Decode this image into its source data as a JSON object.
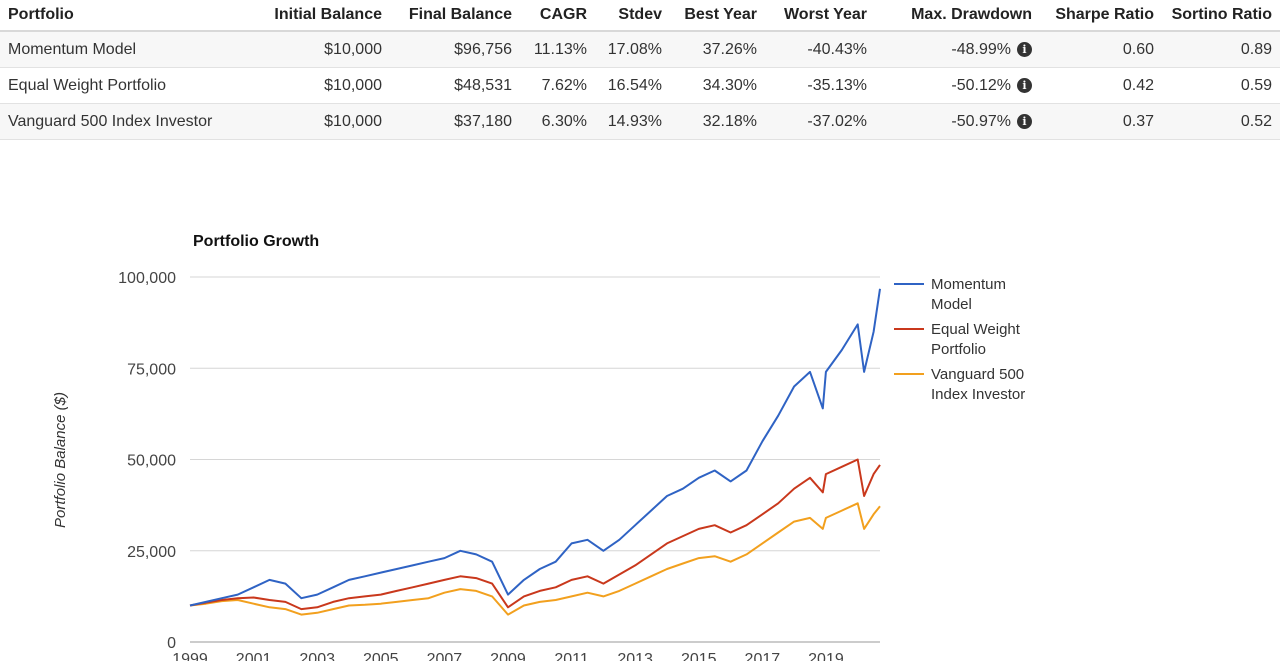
{
  "table": {
    "columns": [
      "Portfolio",
      "Initial Balance",
      "Final Balance",
      "CAGR",
      "Stdev",
      "Best Year",
      "Worst Year",
      "Max. Drawdown",
      "Sharpe Ratio",
      "Sortino Ratio"
    ],
    "rows": [
      {
        "portfolio": "Momentum Model",
        "initial": "$10,000",
        "final": "$96,756",
        "cagr": "11.13%",
        "stdev": "17.08%",
        "best": "37.26%",
        "worst": "-40.43%",
        "maxdd": "-48.99%",
        "sharpe": "0.60",
        "sortino": "0.89"
      },
      {
        "portfolio": "Equal Weight Portfolio",
        "initial": "$10,000",
        "final": "$48,531",
        "cagr": "7.62%",
        "stdev": "16.54%",
        "best": "34.30%",
        "worst": "-35.13%",
        "maxdd": "-50.12%",
        "sharpe": "0.42",
        "sortino": "0.59"
      },
      {
        "portfolio": "Vanguard 500 Index Investor",
        "initial": "$10,000",
        "final": "$37,180",
        "cagr": "6.30%",
        "stdev": "14.93%",
        "best": "32.18%",
        "worst": "-37.02%",
        "maxdd": "-50.97%",
        "sharpe": "0.37",
        "sortino": "0.52"
      }
    ],
    "info_icon": "info-circle-icon"
  },
  "chart_data": {
    "type": "line",
    "title": "Portfolio Growth",
    "ylabel": "Portfolio Balance ($)",
    "xlabel": "",
    "ylim": [
      0,
      100000
    ],
    "xlim": [
      1999,
      2020.7
    ],
    "yticks": [
      0,
      25000,
      50000,
      75000,
      100000
    ],
    "ytick_labels": [
      "0",
      "25,000",
      "50,000",
      "75,000",
      "100,000"
    ],
    "xticks": [
      1999,
      2001,
      2003,
      2005,
      2007,
      2009,
      2011,
      2013,
      2015,
      2017,
      2019
    ],
    "xtick_labels": [
      "1999",
      "2001",
      "2003",
      "2005",
      "2007",
      "2009",
      "2011",
      "2013",
      "2015",
      "2017",
      "2019"
    ],
    "grid": true,
    "legend_position": "right",
    "x": [
      1999.0,
      1999.5,
      2000.0,
      2000.5,
      2001.0,
      2001.5,
      2002.0,
      2002.5,
      2003.0,
      2003.5,
      2004.0,
      2004.5,
      2005.0,
      2005.5,
      2006.0,
      2006.5,
      2007.0,
      2007.5,
      2008.0,
      2008.5,
      2009.0,
      2009.5,
      2010.0,
      2010.5,
      2011.0,
      2011.5,
      2012.0,
      2012.5,
      2013.0,
      2013.5,
      2014.0,
      2014.5,
      2015.0,
      2015.5,
      2016.0,
      2016.5,
      2017.0,
      2017.5,
      2018.0,
      2018.5,
      2018.9,
      2019.0,
      2019.5,
      2020.0,
      2020.2,
      2020.5,
      2020.7
    ],
    "series": [
      {
        "name": "Momentum Model",
        "color": "#2f63c4",
        "values": [
          10000,
          11000,
          12000,
          13000,
          15000,
          17000,
          16000,
          12000,
          13000,
          15000,
          17000,
          18000,
          19000,
          20000,
          21000,
          22000,
          23000,
          25000,
          24000,
          22000,
          13000,
          17000,
          20000,
          22000,
          27000,
          28000,
          25000,
          28000,
          32000,
          36000,
          40000,
          42000,
          45000,
          47000,
          44000,
          47000,
          55000,
          62000,
          70000,
          74000,
          64000,
          74000,
          80000,
          87000,
          74000,
          85000,
          96756
        ]
      },
      {
        "name": "Equal Weight Portfolio",
        "color": "#c9381c",
        "values": [
          10000,
          10800,
          11500,
          12000,
          12200,
          11500,
          11000,
          9000,
          9500,
          11000,
          12000,
          12500,
          13000,
          14000,
          15000,
          16000,
          17000,
          18000,
          17500,
          16000,
          9500,
          12500,
          14000,
          15000,
          17000,
          18000,
          16000,
          18500,
          21000,
          24000,
          27000,
          29000,
          31000,
          32000,
          30000,
          32000,
          35000,
          38000,
          42000,
          45000,
          41000,
          46000,
          48000,
          50000,
          40000,
          46000,
          48531
        ]
      },
      {
        "name": "Vanguard 500 Index Investor",
        "color": "#f2a01e",
        "values": [
          10000,
          10500,
          11200,
          11500,
          10500,
          9500,
          9000,
          7500,
          8000,
          9000,
          10000,
          10200,
          10500,
          11000,
          11500,
          12000,
          13500,
          14500,
          14000,
          12500,
          7500,
          10000,
          11000,
          11500,
          12500,
          13500,
          12500,
          14000,
          16000,
          18000,
          20000,
          21500,
          23000,
          23500,
          22000,
          24000,
          27000,
          30000,
          33000,
          34000,
          31000,
          34000,
          36000,
          38000,
          31000,
          35000,
          37180
        ]
      }
    ]
  }
}
